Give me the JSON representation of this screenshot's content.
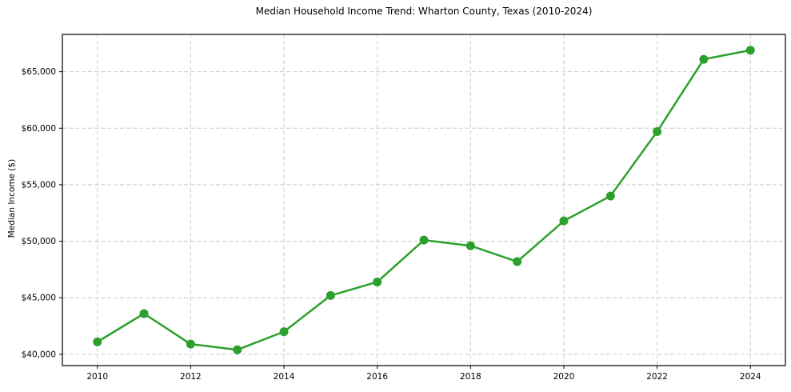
{
  "chart_data": {
    "type": "line",
    "title": "Median Household Income Trend: Wharton County, Texas (2010-2024)",
    "ylabel": "Median Income ($)",
    "xlabel": "",
    "series_name": "Median Household Income",
    "x": [
      2010,
      2011,
      2012,
      2013,
      2014,
      2015,
      2016,
      2017,
      2018,
      2019,
      2020,
      2021,
      2022,
      2023,
      2024
    ],
    "values": [
      41100,
      43600,
      40900,
      40400,
      42000,
      45200,
      46400,
      50100,
      49600,
      48200,
      51800,
      54000,
      59700,
      66100,
      66900
    ],
    "x_ticks": [
      2010,
      2012,
      2014,
      2016,
      2018,
      2020,
      2022,
      2024
    ],
    "x_tick_labels": [
      "2010",
      "2012",
      "2014",
      "2016",
      "2018",
      "2020",
      "2022",
      "2024"
    ],
    "y_ticks": [
      40000,
      45000,
      50000,
      55000,
      60000,
      65000
    ],
    "y_tick_labels": [
      "$40,000",
      "$45,000",
      "$50,000",
      "$55,000",
      "$60,000",
      "$65,000"
    ],
    "xlim": [
      2009.25,
      2024.75
    ],
    "ylim": [
      39000,
      68300
    ],
    "grid": true,
    "grid_style": "dashed",
    "legend": "none",
    "marker": "circle",
    "line_color": "#2ca02c",
    "grid_color": "#cccccc",
    "axis_color": "#000000",
    "background_color": "#ffffff"
  }
}
